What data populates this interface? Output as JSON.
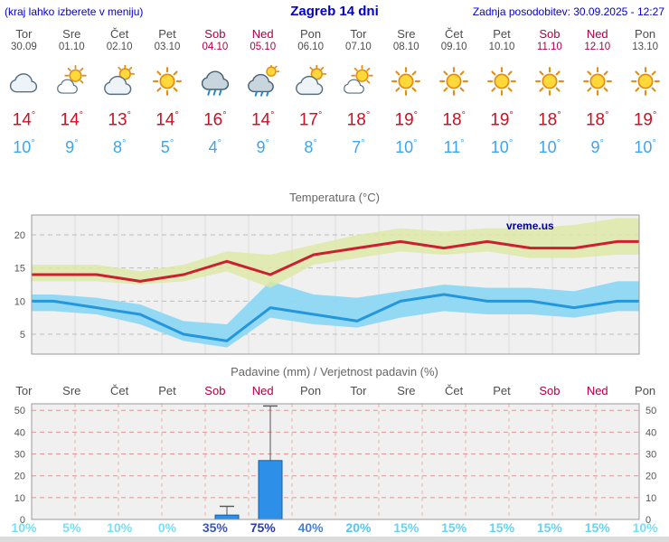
{
  "header": {
    "left_note": "(kraj lahko izberete v meniju)",
    "title": "Zagreb 14 dni",
    "last_update": "Zadnja posodobitev: 30.09.2025 - 12:27"
  },
  "units": {
    "degree": "°"
  },
  "days": [
    {
      "name": "Tor",
      "date": "30.09",
      "weekend": false,
      "icon": "cloudy",
      "tmax": 14,
      "tmin": 10
    },
    {
      "name": "Sre",
      "date": "01.10",
      "weekend": false,
      "icon": "mostly-sunny",
      "tmax": 14,
      "tmin": 9
    },
    {
      "name": "Čet",
      "date": "02.10",
      "weekend": false,
      "icon": "partly-cloudy",
      "tmax": 13,
      "tmin": 8
    },
    {
      "name": "Pet",
      "date": "03.10",
      "weekend": false,
      "icon": "sunny",
      "tmax": 14,
      "tmin": 5
    },
    {
      "name": "Sob",
      "date": "04.10",
      "weekend": true,
      "icon": "rain",
      "tmax": 16,
      "tmin": 4
    },
    {
      "name": "Ned",
      "date": "05.10",
      "weekend": true,
      "icon": "rain-sun",
      "tmax": 14,
      "tmin": 9
    },
    {
      "name": "Pon",
      "date": "06.10",
      "weekend": false,
      "icon": "partly-cloudy",
      "tmax": 17,
      "tmin": 8
    },
    {
      "name": "Tor",
      "date": "07.10",
      "weekend": false,
      "icon": "mostly-sunny",
      "tmax": 18,
      "tmin": 7
    },
    {
      "name": "Sre",
      "date": "08.10",
      "weekend": false,
      "icon": "sunny",
      "tmax": 19,
      "tmin": 10
    },
    {
      "name": "Čet",
      "date": "09.10",
      "weekend": false,
      "icon": "sunny",
      "tmax": 18,
      "tmin": 11
    },
    {
      "name": "Pet",
      "date": "10.10",
      "weekend": false,
      "icon": "sunny",
      "tmax": 19,
      "tmin": 10
    },
    {
      "name": "Sob",
      "date": "11.10",
      "weekend": true,
      "icon": "sunny",
      "tmax": 18,
      "tmin": 10
    },
    {
      "name": "Ned",
      "date": "12.10",
      "weekend": true,
      "icon": "sunny",
      "tmax": 18,
      "tmin": 9
    },
    {
      "name": "Pon",
      "date": "13.10",
      "weekend": false,
      "icon": "sunny",
      "tmax": 19,
      "tmin": 10
    }
  ],
  "chart_data": [
    {
      "type": "line",
      "title": "Temperatura (°C)",
      "watermark": "vreme.us",
      "watermark_color": "#000099",
      "x_categories": [
        "Tor",
        "Sre",
        "Čet",
        "Pet",
        "Sob",
        "Ned",
        "Pon",
        "Tor",
        "Sre",
        "Čet",
        "Pet",
        "Sob",
        "Ned",
        "Pon"
      ],
      "ylim": [
        2,
        23
      ],
      "yticks": [
        5,
        10,
        15,
        20
      ],
      "grid": true,
      "series": [
        {
          "name": "max-temperature",
          "color": "#cc2030",
          "values": [
            14,
            14,
            13,
            14,
            16,
            14,
            17,
            18,
            19,
            18,
            19,
            18,
            18,
            19
          ]
        },
        {
          "name": "min-temperature",
          "color": "#2496dc",
          "values": [
            10,
            9,
            8,
            5,
            4,
            9,
            8,
            7,
            10,
            11,
            10,
            10,
            9,
            10
          ]
        }
      ],
      "bands": [
        {
          "name": "min-temperature-range",
          "color": "#8ed7f3",
          "opacity": 0.95,
          "upper": [
            11,
            10.5,
            9.5,
            7,
            6.5,
            13,
            11,
            10.5,
            11.5,
            12.5,
            12,
            12,
            11.5,
            13
          ],
          "lower": [
            8.5,
            8,
            6.5,
            4,
            3,
            7.5,
            6.5,
            6,
            7.5,
            8.5,
            8,
            8,
            7.5,
            8.5
          ]
        },
        {
          "name": "max-temperature-range",
          "color": "#dce9a2",
          "opacity": 0.8,
          "upper": [
            15.5,
            15.5,
            14.5,
            15.5,
            17.5,
            17,
            18.5,
            20,
            21,
            20.5,
            21,
            21,
            21.5,
            22.5
          ],
          "lower": [
            13,
            13,
            12.5,
            13,
            14.5,
            12,
            15.5,
            16.5,
            17.5,
            17,
            17.5,
            16.5,
            16.5,
            17
          ]
        }
      ]
    },
    {
      "type": "bar",
      "title": "Padavine (mm) / Verjetnost padavin (%)",
      "categories": [
        "Tor",
        "Sre",
        "Čet",
        "Pet",
        "Sob",
        "Ned",
        "Pon",
        "Tor",
        "Sre",
        "Čet",
        "Pet",
        "Sob",
        "Ned",
        "Pon"
      ],
      "weekend_indices": [
        4,
        5,
        11,
        12
      ],
      "values": [
        0,
        0,
        0,
        0,
        2,
        27,
        0,
        0,
        0,
        0,
        0,
        0,
        0,
        0
      ],
      "whisker_max": [
        0,
        0,
        0,
        0,
        6,
        52,
        0,
        0,
        0,
        0,
        0,
        0,
        0,
        0
      ],
      "bar_color": "#2e8fe8",
      "bar_border": "#1060b0",
      "ylim": [
        0,
        53
      ],
      "yticks": [
        0,
        10,
        20,
        30,
        40,
        50
      ],
      "grid": true,
      "probabilities": [
        {
          "label": "10%",
          "color": "#7bdef2"
        },
        {
          "label": "5%",
          "color": "#7bdef2"
        },
        {
          "label": "10%",
          "color": "#7bdef2"
        },
        {
          "label": "0%",
          "color": "#7bdef2"
        },
        {
          "label": "35%",
          "color": "#3c55c0"
        },
        {
          "label": "75%",
          "color": "#2a3cae"
        },
        {
          "label": "40%",
          "color": "#4a80d0"
        },
        {
          "label": "20%",
          "color": "#58c4ea"
        },
        {
          "label": "15%",
          "color": "#6ad2ee"
        },
        {
          "label": "15%",
          "color": "#6ad2ee"
        },
        {
          "label": "15%",
          "color": "#6ad2ee"
        },
        {
          "label": "15%",
          "color": "#6ad2ee"
        },
        {
          "label": "15%",
          "color": "#6ad2ee"
        },
        {
          "label": "10%",
          "color": "#7bdef2"
        }
      ]
    }
  ]
}
